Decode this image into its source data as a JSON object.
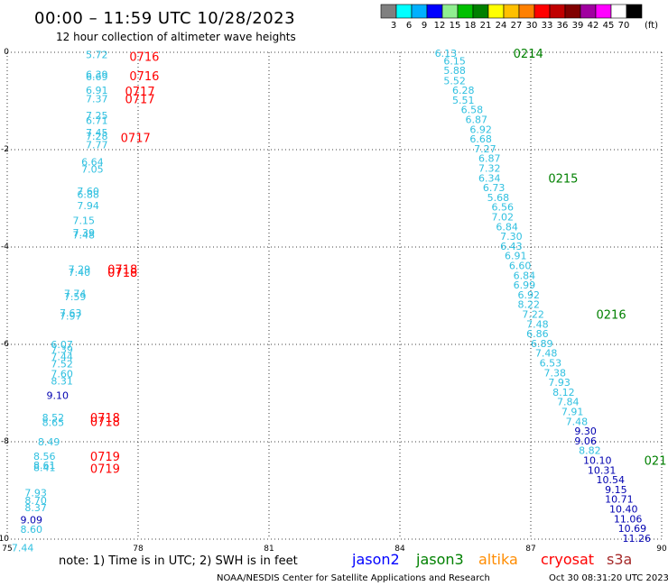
{
  "header": {
    "title": "00:00 – 11:59 UTC 10/28/2023",
    "subtitle": "12 hour collection of altimeter wave heights"
  },
  "legend": {
    "unit": "(ft)",
    "bins": [
      {
        "label": "3",
        "color": "#808080"
      },
      {
        "label": "6",
        "color": "#00ffff"
      },
      {
        "label": "9",
        "color": "#00b0ff"
      },
      {
        "label": "12",
        "color": "#0000ff"
      },
      {
        "label": "15",
        "color": "#90ee90"
      },
      {
        "label": "18",
        "color": "#00c000"
      },
      {
        "label": "21",
        "color": "#008000"
      },
      {
        "label": "24",
        "color": "#ffff00"
      },
      {
        "label": "27",
        "color": "#ffc000"
      },
      {
        "label": "30",
        "color": "#ff8000"
      },
      {
        "label": "33",
        "color": "#ff0000"
      },
      {
        "label": "36",
        "color": "#c00000"
      },
      {
        "label": "39",
        "color": "#800000"
      },
      {
        "label": "42",
        "color": "#a000a0"
      },
      {
        "label": "45",
        "color": "#ff00ff"
      },
      {
        "label": "70",
        "color": "#ffffff"
      },
      {
        "label": "",
        "color": "#000000"
      }
    ]
  },
  "colors": {
    "light": "#30c0e0",
    "medium": "#00a0ff",
    "dark": "#0000b0",
    "jason2": "#0000ff",
    "jason3": "#008000",
    "altika": "#ff8c00",
    "cryosat": "#ff0000",
    "s3a": "#a52a2a"
  },
  "chart_data": {
    "type": "scatter",
    "xlim": [
      75,
      90
    ],
    "ylim": [
      -10,
      0
    ],
    "xticks": [
      "75",
      "78",
      "81",
      "84",
      "87",
      "90"
    ],
    "yticks": [
      "0",
      "-2",
      "-4",
      "-6",
      "-8",
      "-10"
    ],
    "grid": true,
    "series": [
      {
        "name": "cryosat",
        "color": "cryosat",
        "values": [
          [
            76.8,
            -0.05,
            "5.72",
            "light"
          ],
          [
            76.8,
            -0.45,
            "6.39",
            "light"
          ],
          [
            76.8,
            -0.5,
            "6.69",
            "light"
          ],
          [
            76.8,
            -0.78,
            "6.91",
            "light"
          ],
          [
            76.8,
            -0.95,
            "7.37",
            "light"
          ],
          [
            76.8,
            -1.3,
            "7.25",
            "light"
          ],
          [
            76.8,
            -1.4,
            "6.71",
            "light"
          ],
          [
            76.8,
            -1.65,
            "7.45",
            "light"
          ],
          [
            76.8,
            -1.72,
            "7.28",
            "light"
          ],
          [
            76.8,
            -1.9,
            "7.77",
            "light"
          ],
          [
            76.7,
            -2.25,
            "6.64",
            "light"
          ],
          [
            76.7,
            -2.4,
            "7.05",
            "light"
          ],
          [
            76.6,
            -2.85,
            "7.60",
            "light"
          ],
          [
            76.6,
            -2.92,
            "6.88",
            "light"
          ],
          [
            76.6,
            -3.15,
            "7.94",
            "light"
          ],
          [
            76.5,
            -3.45,
            "7.15",
            "light"
          ],
          [
            76.5,
            -3.7,
            "7.39",
            "light"
          ],
          [
            76.5,
            -3.75,
            "7.48",
            "light"
          ],
          [
            76.4,
            -4.45,
            "7.29",
            "light"
          ],
          [
            76.4,
            -4.52,
            "7.40",
            "light"
          ],
          [
            76.3,
            -4.95,
            "7.74",
            "light"
          ],
          [
            76.3,
            -5.02,
            "7.59",
            "light"
          ],
          [
            76.2,
            -5.35,
            "7.63",
            "light"
          ],
          [
            76.2,
            -5.42,
            "7.97",
            "light"
          ],
          [
            76.0,
            -6.0,
            "6.07",
            "light"
          ],
          [
            76.0,
            -6.1,
            "7.39",
            "light"
          ],
          [
            76.0,
            -6.25,
            "7.44",
            "light"
          ],
          [
            76.0,
            -6.4,
            "7.52",
            "light"
          ],
          [
            76.0,
            -6.6,
            "7.60",
            "light"
          ],
          [
            76.0,
            -6.75,
            "8.31",
            "light"
          ],
          [
            75.9,
            -7.05,
            "9.10",
            "dark"
          ],
          [
            75.8,
            -7.5,
            "8.52",
            "light"
          ],
          [
            75.8,
            -7.6,
            "8.65",
            "light"
          ],
          [
            75.7,
            -8.0,
            "8.49",
            "light"
          ],
          [
            75.6,
            -8.3,
            "8.56",
            "light"
          ],
          [
            75.6,
            -8.48,
            "8.61",
            "light"
          ],
          [
            75.6,
            -8.53,
            "8.41",
            "light"
          ],
          [
            75.4,
            -9.05,
            "7.93",
            "light"
          ],
          [
            75.4,
            -9.2,
            "8.70",
            "light"
          ],
          [
            75.4,
            -9.35,
            "8.37",
            "light"
          ],
          [
            75.3,
            -9.6,
            "9.09",
            "dark"
          ],
          [
            75.3,
            -9.8,
            "8.60",
            "light"
          ],
          [
            75.1,
            -10.18,
            "7.44",
            "light"
          ]
        ]
      },
      {
        "name": "jason3",
        "color": "jason3",
        "values": [
          [
            84.8,
            -0.02,
            "6.13",
            "light"
          ],
          [
            85.0,
            -0.18,
            "6.15",
            "light"
          ],
          [
            85.0,
            -0.37,
            "5.88",
            "light"
          ],
          [
            85.0,
            -0.58,
            "5.52",
            "light"
          ],
          [
            85.2,
            -0.78,
            "6.28",
            "light"
          ],
          [
            85.2,
            -0.98,
            "5.51",
            "light"
          ],
          [
            85.4,
            -1.18,
            "6.58",
            "light"
          ],
          [
            85.5,
            -1.38,
            "6.87",
            "light"
          ],
          [
            85.6,
            -1.58,
            "6.92",
            "light"
          ],
          [
            85.6,
            -1.78,
            "6.68",
            "light"
          ],
          [
            85.7,
            -1.98,
            "7.27",
            "light"
          ],
          [
            85.8,
            -2.18,
            "6.87",
            "light"
          ],
          [
            85.8,
            -2.38,
            "7.32",
            "light"
          ],
          [
            85.8,
            -2.58,
            "6.34",
            "light"
          ],
          [
            85.9,
            -2.78,
            "6.73",
            "light"
          ],
          [
            86.0,
            -2.98,
            "5.68",
            "light"
          ],
          [
            86.1,
            -3.18,
            "6.56",
            "light"
          ],
          [
            86.1,
            -3.38,
            "7.02",
            "light"
          ],
          [
            86.2,
            -3.58,
            "6.84",
            "light"
          ],
          [
            86.3,
            -3.78,
            "7.30",
            "light"
          ],
          [
            86.3,
            -3.98,
            "6.43",
            "light"
          ],
          [
            86.4,
            -4.18,
            "6.91",
            "light"
          ],
          [
            86.5,
            -4.38,
            "6.60",
            "light"
          ],
          [
            86.6,
            -4.58,
            "6.84",
            "light"
          ],
          [
            86.6,
            -4.78,
            "6.99",
            "light"
          ],
          [
            86.7,
            -4.98,
            "6.92",
            "light"
          ],
          [
            86.7,
            -5.18,
            "8.22",
            "light"
          ],
          [
            86.8,
            -5.38,
            "7.22",
            "light"
          ],
          [
            86.9,
            -5.58,
            "7.48",
            "light"
          ],
          [
            86.9,
            -5.78,
            "6.86",
            "light"
          ],
          [
            87.0,
            -5.98,
            "6.89",
            "light"
          ],
          [
            87.1,
            -6.18,
            "7.48",
            "light"
          ],
          [
            87.2,
            -6.38,
            "6.53",
            "light"
          ],
          [
            87.3,
            -6.58,
            "7.38",
            "light"
          ],
          [
            87.4,
            -6.78,
            "7.93",
            "light"
          ],
          [
            87.5,
            -6.98,
            "8.12",
            "light"
          ],
          [
            87.6,
            -7.18,
            "7.84",
            "light"
          ],
          [
            87.7,
            -7.38,
            "7.91",
            "light"
          ],
          [
            87.8,
            -7.58,
            "7.48",
            "light"
          ],
          [
            88.0,
            -7.78,
            "9.30",
            "dark"
          ],
          [
            88.0,
            -7.98,
            "9.06",
            "dark"
          ],
          [
            88.1,
            -8.18,
            "8.82",
            "light"
          ],
          [
            88.2,
            -8.38,
            "10.10",
            "dark"
          ],
          [
            88.3,
            -8.58,
            "10.31",
            "dark"
          ],
          [
            88.5,
            -8.78,
            "10.54",
            "dark"
          ],
          [
            88.7,
            -8.98,
            "9.15",
            "dark"
          ],
          [
            88.7,
            -9.18,
            "10.71",
            "dark"
          ],
          [
            88.8,
            -9.38,
            "10.40",
            "dark"
          ],
          [
            88.9,
            -9.58,
            "11.06",
            "dark"
          ],
          [
            89.0,
            -9.78,
            "10.69",
            "dark"
          ],
          [
            89.1,
            -9.98,
            "11.26",
            "dark"
          ]
        ]
      }
    ],
    "time_labels": [
      {
        "label": "0716",
        "series": "cryosat",
        "x": 77.8,
        "y": -0.08
      },
      {
        "label": "0716",
        "series": "cryosat",
        "x": 77.8,
        "y": -0.48
      },
      {
        "label": "0717",
        "series": "cryosat",
        "x": 77.7,
        "y": -0.8
      },
      {
        "label": "0717",
        "series": "cryosat",
        "x": 77.7,
        "y": -0.95
      },
      {
        "label": "0717",
        "series": "cryosat",
        "x": 77.6,
        "y": -1.75
      },
      {
        "label": "0718",
        "series": "cryosat",
        "x": 77.3,
        "y": -4.45
      },
      {
        "label": "0718",
        "series": "cryosat",
        "x": 77.3,
        "y": -4.52
      },
      {
        "label": "0718",
        "series": "cryosat",
        "x": 76.9,
        "y": -7.5
      },
      {
        "label": "0718",
        "series": "cryosat",
        "x": 76.9,
        "y": -7.58
      },
      {
        "label": "0719",
        "series": "cryosat",
        "x": 76.9,
        "y": -8.3
      },
      {
        "label": "0719",
        "series": "cryosat",
        "x": 76.9,
        "y": -8.55
      },
      {
        "label": "0214",
        "series": "jason3",
        "x": 86.6,
        "y": -0.02
      },
      {
        "label": "0215",
        "series": "jason3",
        "x": 87.4,
        "y": -2.58
      },
      {
        "label": "0216",
        "series": "jason3",
        "x": 88.5,
        "y": -5.38
      },
      {
        "label": "021",
        "series": "jason3",
        "x": 89.6,
        "y": -8.38
      }
    ]
  },
  "footer": {
    "note": "note: 1) Time is in UTC; 2) SWH is in feet",
    "satellites": [
      {
        "name": "jason2",
        "color": "jason2"
      },
      {
        "name": "jason3",
        "color": "jason3"
      },
      {
        "name": "altika",
        "color": "altika"
      },
      {
        "name": "cryosat",
        "color": "cryosat"
      },
      {
        "name": "s3a",
        "color": "s3a"
      }
    ],
    "credit_left": "NOAA/NESDIS Center for Satellite Applications and Research",
    "credit_right": "Oct 30 08:31:20 UTC 2023"
  }
}
